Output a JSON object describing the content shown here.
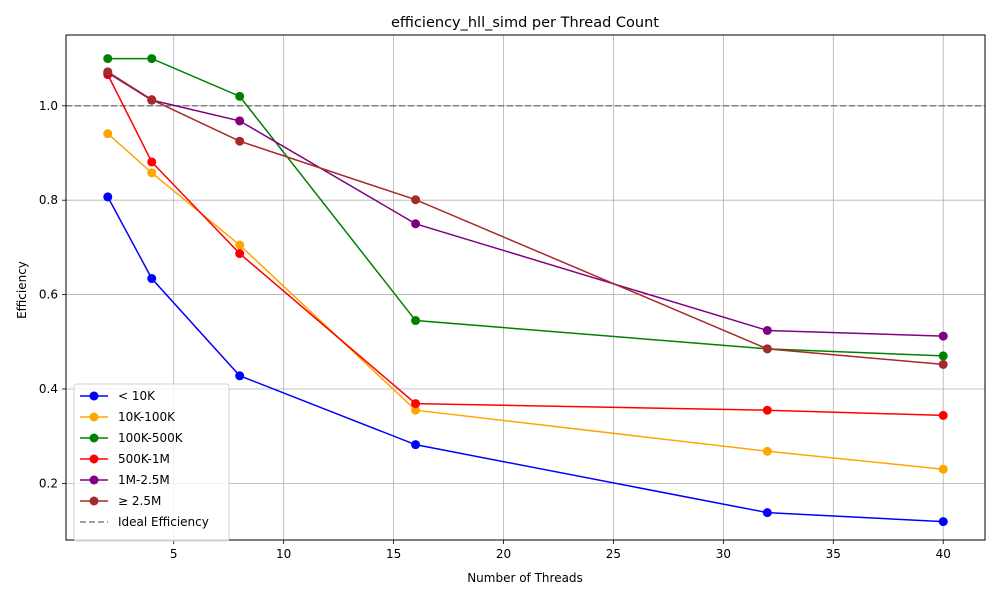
{
  "chart_data": {
    "type": "line",
    "title": "efficiency_hll_simd per Thread Count",
    "xlabel": "Number of Threads",
    "ylabel": "Efficiency",
    "xlim": [
      0.1,
      41.9
    ],
    "ylim": [
      0.08,
      1.15
    ],
    "xticks": [
      5,
      10,
      15,
      20,
      25,
      30,
      35,
      40
    ],
    "yticks": [
      0.2,
      0.4,
      0.6,
      0.8,
      1.0
    ],
    "grid": true,
    "legend_position": "lower-left",
    "x": [
      2,
      4,
      8,
      16,
      32,
      40
    ],
    "series": [
      {
        "name": "< 10K",
        "color": "#0000ff",
        "values": [
          0.807,
          0.634,
          0.428,
          0.282,
          0.138,
          0.119
        ]
      },
      {
        "name": "10K-100K",
        "color": "#ffa500",
        "values": [
          0.941,
          0.858,
          0.705,
          0.355,
          0.268,
          0.23
        ]
      },
      {
        "name": "100K-500K",
        "color": "#008000",
        "values": [
          1.1,
          1.1,
          1.02,
          0.545,
          0.485,
          0.47
        ]
      },
      {
        "name": "500K-1M",
        "color": "#ff0000",
        "values": [
          1.066,
          0.881,
          0.687,
          0.369,
          0.355,
          0.344
        ]
      },
      {
        "name": "1M-2.5M",
        "color": "#800080",
        "values": [
          1.07,
          1.012,
          0.968,
          0.75,
          0.524,
          0.512
        ]
      },
      {
        "name": "≥ 2.5M",
        "color": "#a52a2a",
        "values": [
          1.072,
          1.013,
          0.925,
          0.801,
          0.485,
          0.452
        ]
      }
    ],
    "reference_line": {
      "name": "Ideal Efficiency",
      "y": 1.0,
      "color": "#808080",
      "style": "dashed"
    }
  }
}
